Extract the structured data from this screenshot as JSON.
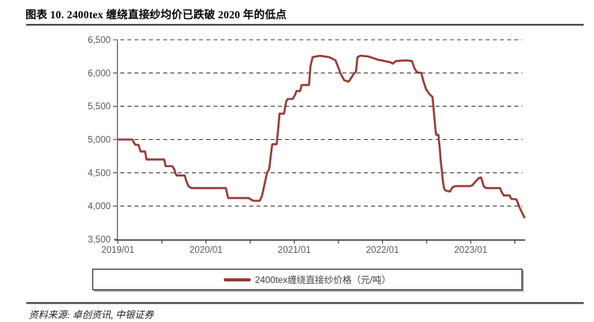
{
  "title": "图表 10. 2400tex 缠绕直接纱均价已跌破 2020 年的低点",
  "source": "资料来源: 卓创资讯, 中银证券",
  "legend": {
    "label": "2400tex缠绕直接纱价格（元/吨）"
  },
  "colors": {
    "line": "#9A3B36",
    "grid": "#3D3D3D",
    "y_axis": "#6B6B6B",
    "x_axis": "#4A4A4A",
    "tick_label": "#595959"
  },
  "chart_data": {
    "type": "line",
    "title": "2400tex 缠绕直接纱均价已跌破 2020 年的低点",
    "xlabel": "",
    "ylabel": "元/吨",
    "ylim": [
      3500,
      6500
    ],
    "y_ticks": [
      3500,
      4000,
      4500,
      5000,
      5500,
      6000,
      6500
    ],
    "grid": "horizontal-dashed",
    "legend_position": "bottom-boxed",
    "x_unit": "months since 2019/01",
    "x_range": [
      0,
      55.4
    ],
    "x_minor_tick_step_months": 6,
    "x_ticks": [
      {
        "t": 0,
        "label": "2019/01"
      },
      {
        "t": 12,
        "label": "2020/01"
      },
      {
        "t": 24,
        "label": "2021/01"
      },
      {
        "t": 36,
        "label": "2022/01"
      },
      {
        "t": 48,
        "label": "2023/01"
      }
    ],
    "series": [
      {
        "name": "2400tex缠绕直接纱价格（元/吨）",
        "unit": "元/吨",
        "points": [
          [
            0.1,
            5000
          ],
          [
            2.0,
            5000
          ],
          [
            2.2,
            4950
          ],
          [
            2.4,
            4920
          ],
          [
            2.8,
            4920
          ],
          [
            3.1,
            4820
          ],
          [
            3.7,
            4820
          ],
          [
            3.9,
            4700
          ],
          [
            6.3,
            4700
          ],
          [
            6.5,
            4600
          ],
          [
            7.4,
            4600
          ],
          [
            7.7,
            4550
          ],
          [
            7.8,
            4500
          ],
          [
            8.0,
            4460
          ],
          [
            9.1,
            4460
          ],
          [
            9.3,
            4380
          ],
          [
            9.6,
            4300
          ],
          [
            10.0,
            4270
          ],
          [
            14.7,
            4270
          ],
          [
            15.0,
            4120
          ],
          [
            17.8,
            4120
          ],
          [
            18.1,
            4100
          ],
          [
            18.4,
            4080
          ],
          [
            19.3,
            4080
          ],
          [
            19.6,
            4150
          ],
          [
            19.9,
            4300
          ],
          [
            20.3,
            4500
          ],
          [
            20.6,
            4560
          ],
          [
            20.8,
            4750
          ],
          [
            21.0,
            4930
          ],
          [
            21.6,
            4930
          ],
          [
            21.8,
            5150
          ],
          [
            22.0,
            5390
          ],
          [
            22.6,
            5390
          ],
          [
            22.9,
            5570
          ],
          [
            23.1,
            5610
          ],
          [
            23.8,
            5610
          ],
          [
            24.1,
            5670
          ],
          [
            24.3,
            5730
          ],
          [
            24.8,
            5730
          ],
          [
            25.0,
            5820
          ],
          [
            26.0,
            5820
          ],
          [
            26.2,
            6100
          ],
          [
            26.5,
            6240
          ],
          [
            27.5,
            6260
          ],
          [
            28.7,
            6240
          ],
          [
            29.1,
            6220
          ],
          [
            29.6,
            6190
          ],
          [
            30.0,
            6080
          ],
          [
            30.3,
            5990
          ],
          [
            30.8,
            5890
          ],
          [
            31.4,
            5870
          ],
          [
            31.7,
            5920
          ],
          [
            32.1,
            5990
          ],
          [
            32.4,
            6020
          ],
          [
            32.6,
            6240
          ],
          [
            33.0,
            6260
          ],
          [
            34.0,
            6250
          ],
          [
            34.6,
            6230
          ],
          [
            35.4,
            6200
          ],
          [
            36.3,
            6180
          ],
          [
            37.1,
            6160
          ],
          [
            37.4,
            6140
          ],
          [
            37.8,
            6180
          ],
          [
            39.2,
            6190
          ],
          [
            40.0,
            6180
          ],
          [
            40.4,
            6060
          ],
          [
            40.7,
            6010
          ],
          [
            41.3,
            6000
          ],
          [
            41.5,
            5900
          ],
          [
            41.9,
            5760
          ],
          [
            42.4,
            5680
          ],
          [
            42.8,
            5640
          ],
          [
            43.0,
            5400
          ],
          [
            43.2,
            5150
          ],
          [
            43.3,
            5070
          ],
          [
            43.6,
            5070
          ],
          [
            43.7,
            4950
          ],
          [
            43.8,
            4860
          ],
          [
            43.9,
            4700
          ],
          [
            44.1,
            4500
          ],
          [
            44.2,
            4380
          ],
          [
            44.4,
            4260
          ],
          [
            44.6,
            4230
          ],
          [
            45.2,
            4220
          ],
          [
            45.5,
            4280
          ],
          [
            45.9,
            4300
          ],
          [
            47.9,
            4300
          ],
          [
            48.2,
            4310
          ],
          [
            48.6,
            4360
          ],
          [
            49.1,
            4420
          ],
          [
            49.4,
            4430
          ],
          [
            49.6,
            4360
          ],
          [
            49.8,
            4290
          ],
          [
            50.1,
            4270
          ],
          [
            52.0,
            4270
          ],
          [
            52.2,
            4210
          ],
          [
            52.5,
            4160
          ],
          [
            53.3,
            4160
          ],
          [
            53.5,
            4110
          ],
          [
            54.2,
            4100
          ],
          [
            54.4,
            4050
          ],
          [
            54.6,
            3990
          ],
          [
            54.9,
            3920
          ],
          [
            55.3,
            3830
          ]
        ]
      }
    ]
  }
}
